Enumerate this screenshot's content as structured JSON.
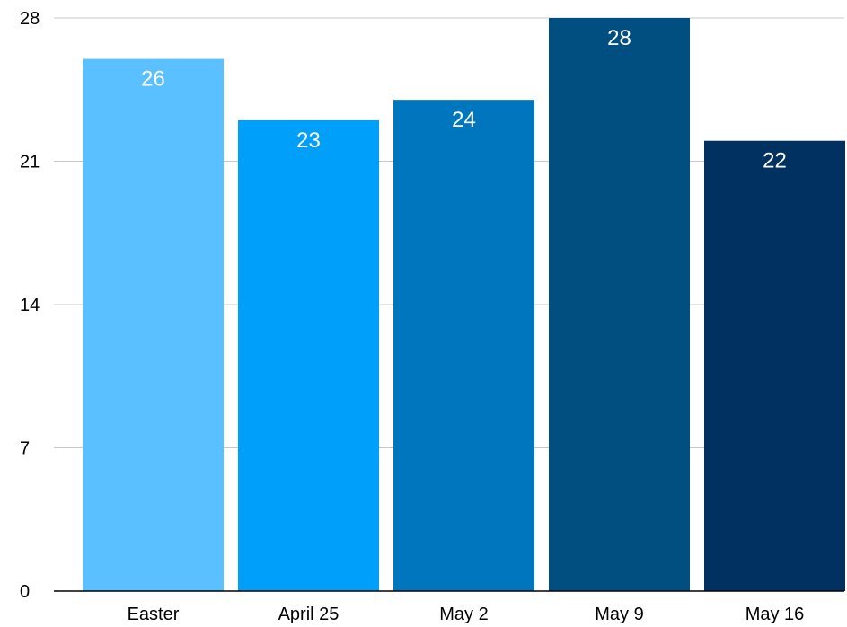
{
  "chart_data": {
    "type": "bar",
    "title": "",
    "xlabel": "",
    "ylabel": "",
    "categories": [
      "Easter",
      "April 25",
      "May 2",
      "May 9",
      "May 16"
    ],
    "values": [
      26,
      23,
      24,
      28,
      22
    ],
    "colors": [
      "#5ac0ff",
      "#00a0fa",
      "#0076bf",
      "#004f80",
      "#003160"
    ],
    "ylim": [
      0,
      28
    ],
    "yticks": [
      0,
      7,
      14,
      21,
      28
    ],
    "ytick_labels": [
      "0",
      "7",
      "14",
      "21",
      "28"
    ],
    "grid": true,
    "legend": "none",
    "data_labels": [
      "26",
      "23",
      "24",
      "28",
      "22"
    ]
  }
}
